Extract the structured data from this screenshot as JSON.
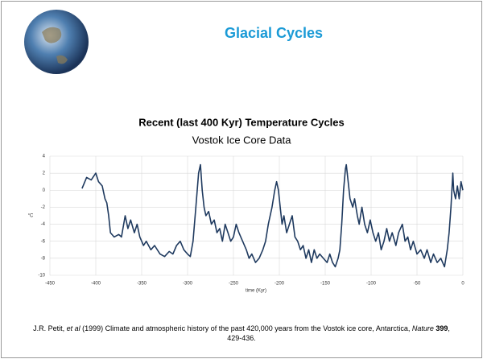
{
  "slide_title": "Glacial Cycles",
  "chart_data": {
    "type": "line",
    "title": "Recent  (last 400 Kyr) Temperature Cycles",
    "subtitle": "Vostok Ice Core Data",
    "x_label": "time (Kyr)",
    "y_label": "°C",
    "xlim": [
      -450,
      0
    ],
    "xticks": [
      -450,
      -400,
      -350,
      -300,
      -250,
      -200,
      -150,
      -100,
      -50,
      0
    ],
    "ylim": [
      -10,
      4
    ],
    "yticks": [
      -10,
      -8,
      -6,
      -4,
      -2,
      0,
      2,
      4
    ],
    "grid": true,
    "color": "#1f3a5f",
    "x": [
      -415,
      -410,
      -405,
      -400,
      -397,
      -393,
      -390,
      -388,
      -386,
      -384,
      -380,
      -375,
      -372,
      -368,
      -365,
      -362,
      -358,
      -355,
      -352,
      -348,
      -345,
      -340,
      -336,
      -330,
      -325,
      -320,
      -316,
      -312,
      -308,
      -304,
      -300,
      -297,
      -294,
      -291,
      -288,
      -286,
      -284,
      -282,
      -280,
      -277,
      -274,
      -271,
      -268,
      -265,
      -262,
      -259,
      -256,
      -253,
      -250,
      -247,
      -244,
      -240,
      -236,
      -233,
      -230,
      -226,
      -222,
      -218,
      -215,
      -212,
      -208,
      -205,
      -203,
      -201,
      -199,
      -197,
      -195,
      -192,
      -189,
      -186,
      -183,
      -180,
      -177,
      -174,
      -171,
      -168,
      -165,
      -162,
      -159,
      -156,
      -152,
      -148,
      -145,
      -142,
      -139,
      -136,
      -134,
      -132,
      -130,
      -128,
      -127,
      -125,
      -123,
      -120,
      -118,
      -115,
      -113,
      -110,
      -107,
      -104,
      -101,
      -98,
      -95,
      -92,
      -89,
      -86,
      -83,
      -80,
      -77,
      -73,
      -70,
      -66,
      -63,
      -60,
      -57,
      -54,
      -50,
      -46,
      -42,
      -39,
      -35,
      -32,
      -28,
      -24,
      -20,
      -17,
      -15,
      -13,
      -11,
      -10,
      -8,
      -6,
      -4,
      -2,
      0
    ],
    "values": [
      0.2,
      1.5,
      1.2,
      2,
      1,
      0.5,
      -1,
      -1.5,
      -3,
      -5,
      -5.5,
      -5.2,
      -5.5,
      -3,
      -4.5,
      -3.5,
      -5,
      -4,
      -5.5,
      -6.5,
      -6,
      -7,
      -6.5,
      -7.5,
      -7.8,
      -7.2,
      -7.5,
      -6.5,
      -6,
      -7,
      -7.5,
      -7.8,
      -6,
      -2,
      2,
      3,
      0,
      -2,
      -3,
      -2.5,
      -4,
      -3.5,
      -5,
      -4.5,
      -6,
      -4,
      -5,
      -6,
      -5.5,
      -4,
      -5,
      -6,
      -7,
      -8,
      -7.5,
      -8.5,
      -8,
      -7,
      -6,
      -4,
      -2,
      0,
      1,
      0,
      -2,
      -4,
      -3,
      -5,
      -4,
      -3,
      -5.5,
      -6,
      -7,
      -6.5,
      -8,
      -7,
      -8.5,
      -7,
      -8,
      -7.5,
      -8,
      -8.5,
      -7.5,
      -8.5,
      -9,
      -8,
      -7,
      -4,
      0,
      2.5,
      3,
      1,
      -1,
      -2,
      -1,
      -3,
      -4,
      -2,
      -4,
      -5,
      -3.5,
      -5,
      -6,
      -5,
      -7,
      -6,
      -4.5,
      -6,
      -5,
      -6.5,
      -5,
      -4,
      -6,
      -5.5,
      -7,
      -6,
      -7.5,
      -7,
      -8,
      -7,
      -8.5,
      -7.5,
      -8.5,
      -8,
      -9,
      -7,
      -5,
      -2,
      2,
      0,
      -1,
      0.5,
      -1,
      1,
      0
    ]
  },
  "citation": [
    "J.R. Petit,",
    "et al",
    "(1999) Climate and atmospheric history of the past 420,000 years from the Vostok ice core, Antarctica,",
    "Nature",
    "399",
    ", 429-436."
  ]
}
